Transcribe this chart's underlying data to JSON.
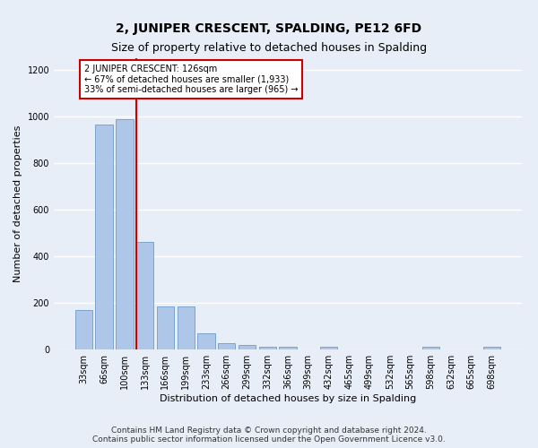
{
  "title": "2, JUNIPER CRESCENT, SPALDING, PE12 6FD",
  "subtitle": "Size of property relative to detached houses in Spalding",
  "xlabel": "Distribution of detached houses by size in Spalding",
  "ylabel": "Number of detached properties",
  "categories": [
    "33sqm",
    "66sqm",
    "100sqm",
    "133sqm",
    "166sqm",
    "199sqm",
    "233sqm",
    "266sqm",
    "299sqm",
    "332sqm",
    "366sqm",
    "399sqm",
    "432sqm",
    "465sqm",
    "499sqm",
    "532sqm",
    "565sqm",
    "598sqm",
    "632sqm",
    "665sqm",
    "698sqm"
  ],
  "values": [
    170,
    965,
    990,
    460,
    185,
    185,
    68,
    28,
    18,
    12,
    10,
    0,
    10,
    0,
    0,
    0,
    0,
    10,
    0,
    0,
    10
  ],
  "bar_color": "#aec6e8",
  "bar_edge_color": "#5a8fc2",
  "property_line_index": 3,
  "property_line_color": "#cc0000",
  "annotation_text": "2 JUNIPER CRESCENT: 126sqm\n← 67% of detached houses are smaller (1,933)\n33% of semi-detached houses are larger (965) →",
  "annotation_box_color": "#ffffff",
  "annotation_box_edge": "#cc0000",
  "ylim": [
    0,
    1250
  ],
  "yticks": [
    0,
    200,
    400,
    600,
    800,
    1000,
    1200
  ],
  "footnote": "Contains HM Land Registry data © Crown copyright and database right 2024.\nContains public sector information licensed under the Open Government Licence v3.0.",
  "background_color": "#e8eef7",
  "grid_color": "#ffffff",
  "title_fontsize": 10,
  "subtitle_fontsize": 9,
  "label_fontsize": 8,
  "tick_fontsize": 7,
  "footnote_fontsize": 6.5
}
